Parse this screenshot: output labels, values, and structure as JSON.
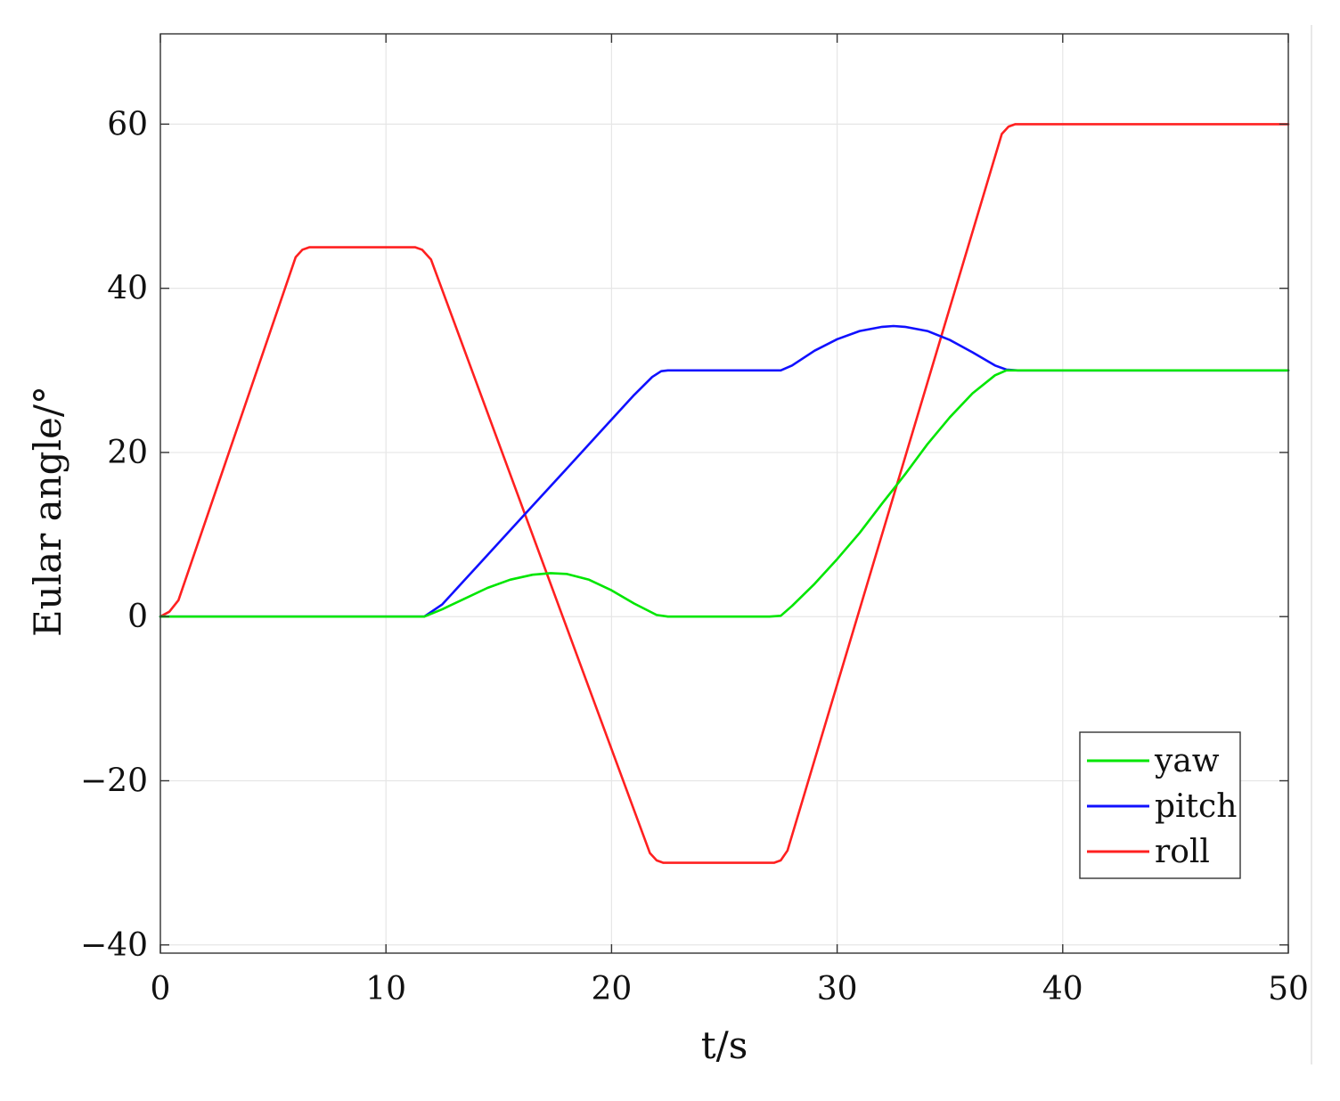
{
  "chart_data": {
    "type": "line",
    "title": "",
    "xlabel": "t/s",
    "ylabel": "Eular angle/°",
    "xlim": [
      0,
      50
    ],
    "ylim": [
      -41,
      71
    ],
    "xticks": [
      0,
      10,
      20,
      30,
      40,
      50
    ],
    "yticks": [
      -40,
      -20,
      0,
      20,
      40,
      60
    ],
    "xtick_labels": [
      "0",
      "10",
      "20",
      "30",
      "40",
      "50"
    ],
    "ytick_labels": [
      "−40",
      "−20",
      "0",
      "20",
      "40",
      "60"
    ],
    "grid": true,
    "legend_position": "bottom-right",
    "series": [
      {
        "name": "yaw",
        "color": "#00e600",
        "x": [
          0,
          11.7,
          12.5,
          13.5,
          14.5,
          15.5,
          16.5,
          17.3,
          18,
          19,
          20,
          21,
          22,
          22.5,
          27,
          27.5,
          28,
          29,
          30,
          31,
          32,
          33,
          34,
          35,
          36,
          37,
          37.5,
          38,
          50
        ],
        "y": [
          0,
          0,
          0.9,
          2.2,
          3.5,
          4.5,
          5.1,
          5.3,
          5.2,
          4.5,
          3.2,
          1.6,
          0.2,
          0,
          0,
          0.1,
          1.3,
          4.0,
          7.0,
          10.2,
          13.8,
          17.3,
          21.0,
          24.3,
          27.2,
          29.4,
          30,
          30,
          30
        ]
      },
      {
        "name": "pitch",
        "color": "#1010ff",
        "x": [
          0,
          11.7,
          12.5,
          13.5,
          15,
          16.5,
          18,
          19.5,
          21,
          21.8,
          22.2,
          22.5,
          27.5,
          28,
          29,
          30,
          31,
          32,
          32.5,
          33,
          34,
          35,
          36,
          37,
          37.5,
          38,
          50
        ],
        "y": [
          0,
          0,
          1.5,
          4.5,
          9.0,
          13.5,
          18.0,
          22.5,
          27.0,
          29.2,
          29.9,
          30,
          30,
          30.6,
          32.4,
          33.8,
          34.8,
          35.3,
          35.4,
          35.3,
          34.8,
          33.7,
          32.2,
          30.6,
          30.1,
          30,
          30
        ]
      },
      {
        "name": "roll",
        "color": "#ff2020",
        "x": [
          0,
          0.4,
          0.8,
          6,
          6.3,
          6.6,
          11.3,
          11.6,
          12,
          21.7,
          22,
          22.3,
          27.2,
          27.5,
          27.8,
          37.3,
          37.6,
          37.9,
          50
        ],
        "y": [
          0,
          0.6,
          2.0,
          43.8,
          44.7,
          45,
          45,
          44.7,
          43.5,
          -28.8,
          -29.7,
          -30,
          -30,
          -29.7,
          -28.5,
          58.8,
          59.7,
          60,
          60
        ]
      }
    ]
  }
}
